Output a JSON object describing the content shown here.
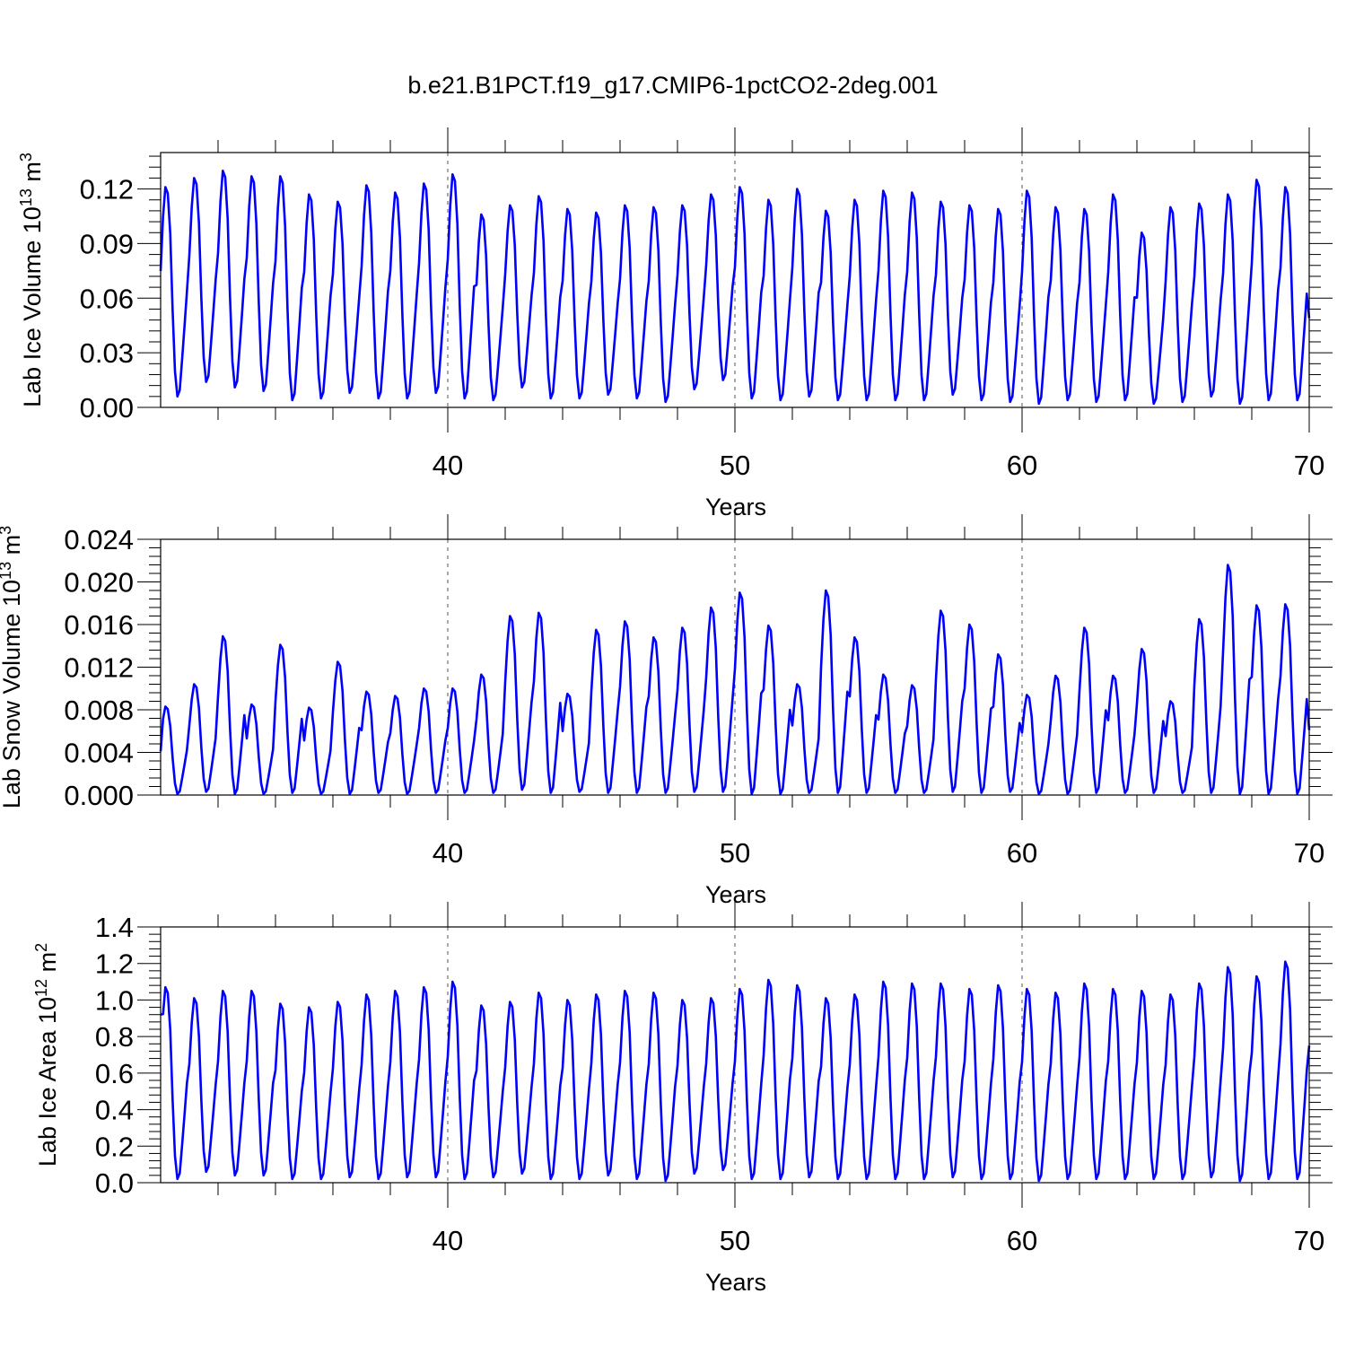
{
  "title": "b.e21.B1PCT.f19_g17.CMIP6-1pctCO2-2deg.001",
  "line_color": "#0000ff",
  "chart_data": [
    {
      "type": "line",
      "title": "b.e21.B1PCT.f19_g17.CMIP6-1pctCO2-2deg.001",
      "xlabel": "Years",
      "ylabel": "Lab Ice Volume 10",
      "ylabel_exp": "13",
      "ylabel_unit": " m",
      "ylabel_unit_exp": "3",
      "xlim": [
        30,
        70
      ],
      "ylim": [
        0,
        0.14
      ],
      "xticks": [
        40,
        50,
        60,
        70
      ],
      "xtick_labels": [
        "40",
        "50",
        "60",
        "70"
      ],
      "yticks": [
        0,
        0.03,
        0.06,
        0.09,
        0.12
      ],
      "ytick_labels": [
        "0.00",
        "0.03",
        "0.06",
        "0.09",
        "0.12"
      ],
      "grid_x": [
        40,
        50,
        60
      ],
      "annual_peaks": [
        0.121,
        0.126,
        0.13,
        0.127,
        0.127,
        0.117,
        0.113,
        0.122,
        0.118,
        0.123,
        0.128,
        0.106,
        0.111,
        0.116,
        0.109,
        0.107,
        0.111,
        0.11,
        0.111,
        0.117,
        0.121,
        0.114,
        0.12,
        0.108,
        0.114,
        0.119,
        0.118,
        0.113,
        0.111,
        0.109,
        0.119,
        0.11,
        0.109,
        0.117,
        0.096,
        0.11,
        0.112,
        0.117,
        0.125,
        0.121
      ],
      "annual_troughs": [
        0.006,
        0.014,
        0.011,
        0.009,
        0.004,
        0.005,
        0.008,
        0.005,
        0.005,
        0.008,
        0.005,
        0.004,
        0.011,
        0.005,
        0.005,
        0.007,
        0.005,
        0.003,
        0.01,
        0.015,
        0.005,
        0.004,
        0.006,
        0.004,
        0.004,
        0.004,
        0.004,
        0.007,
        0.004,
        0.003,
        0.002,
        0.004,
        0.003,
        0.004,
        0.002,
        0.003,
        0.006,
        0.002,
        0.004,
        0.004
      ],
      "start_value": 0.075,
      "end_value": 0.049
    },
    {
      "type": "line",
      "xlabel": "Years",
      "ylabel": "Lab Snow Volume 10",
      "ylabel_exp": "13",
      "ylabel_unit": " m",
      "ylabel_unit_exp": "3",
      "xlim": [
        30,
        70
      ],
      "ylim": [
        0,
        0.024
      ],
      "xticks": [
        40,
        50,
        60,
        70
      ],
      "xtick_labels": [
        "40",
        "50",
        "60",
        "70"
      ],
      "yticks": [
        0,
        0.004,
        0.008,
        0.012,
        0.016,
        0.02,
        0.024
      ],
      "ytick_labels": [
        "0.000",
        "0.004",
        "0.008",
        "0.012",
        "0.016",
        "0.020",
        "0.024"
      ],
      "grid_x": [
        40,
        50,
        60
      ],
      "annual_peaks": [
        0.0083,
        0.0104,
        0.0149,
        0.0085,
        0.0141,
        0.0082,
        0.0125,
        0.0097,
        0.0093,
        0.01,
        0.01,
        0.0113,
        0.0168,
        0.0171,
        0.0095,
        0.0155,
        0.0163,
        0.0148,
        0.0157,
        0.0176,
        0.019,
        0.0159,
        0.0104,
        0.0192,
        0.0148,
        0.0113,
        0.0103,
        0.0173,
        0.016,
        0.0132,
        0.0094,
        0.0112,
        0.0157,
        0.0112,
        0.0137,
        0.0088,
        0.0165,
        0.0216,
        0.0178,
        0.0179
      ],
      "annual_troughs": [
        0.0001,
        0.0003,
        0.0001,
        0.0001,
        0.0002,
        0.0001,
        0.0001,
        0.0002,
        0.0001,
        0.0002,
        0.0002,
        0.0002,
        0.0005,
        0.0002,
        0.0003,
        0.0002,
        0.0002,
        0.0002,
        0.0003,
        0.0003,
        0.0001,
        0.0001,
        0.0002,
        0.0002,
        0.0002,
        0.0002,
        0.0002,
        0.0003,
        0.0002,
        0.0003,
        0.0001,
        0.0001,
        0.0002,
        0.0002,
        0.0002,
        0.0002,
        0.0002,
        0.0001,
        0.0001,
        0.0001
      ],
      "start_value": 0.0041,
      "end_value": 0.0061
    },
    {
      "type": "line",
      "xlabel": "Years",
      "ylabel": "Lab Ice Area 10",
      "ylabel_exp": "12",
      "ylabel_unit": " m",
      "ylabel_unit_exp": "2",
      "xlim": [
        30,
        70
      ],
      "ylim": [
        0,
        1.4
      ],
      "xticks": [
        40,
        50,
        60,
        70
      ],
      "xtick_labels": [
        "40",
        "50",
        "60",
        "70"
      ],
      "yticks": [
        0,
        0.2,
        0.4,
        0.6,
        0.8,
        1.0,
        1.2,
        1.4
      ],
      "ytick_labels": [
        "0.0",
        "0.2",
        "0.4",
        "0.6",
        "0.8",
        "1.0",
        "1.2",
        "1.4"
      ],
      "grid_x": [
        40,
        50,
        60
      ],
      "annual_peaks": [
        1.07,
        1.01,
        1.05,
        1.05,
        0.98,
        0.96,
        0.99,
        1.03,
        1.05,
        1.07,
        1.1,
        0.97,
        0.99,
        1.04,
        1.0,
        1.03,
        1.05,
        1.04,
        1.0,
        1.01,
        1.06,
        1.11,
        1.08,
        1.01,
        1.03,
        1.1,
        1.09,
        1.09,
        1.06,
        1.08,
        1.06,
        1.04,
        1.09,
        1.06,
        1.05,
        1.03,
        1.09,
        1.18,
        1.13,
        1.21
      ],
      "annual_troughs": [
        0.02,
        0.06,
        0.04,
        0.04,
        0.02,
        0.02,
        0.03,
        0.02,
        0.03,
        0.03,
        0.02,
        0.03,
        0.05,
        0.02,
        0.02,
        0.04,
        0.02,
        0.01,
        0.05,
        0.07,
        0.02,
        0.02,
        0.03,
        0.02,
        0.02,
        0.02,
        0.02,
        0.03,
        0.02,
        0.02,
        0.01,
        0.02,
        0.02,
        0.02,
        0.02,
        0.02,
        0.03,
        0.01,
        0.02,
        0.02
      ],
      "start_value": 0.92,
      "end_value": 0.75
    }
  ]
}
